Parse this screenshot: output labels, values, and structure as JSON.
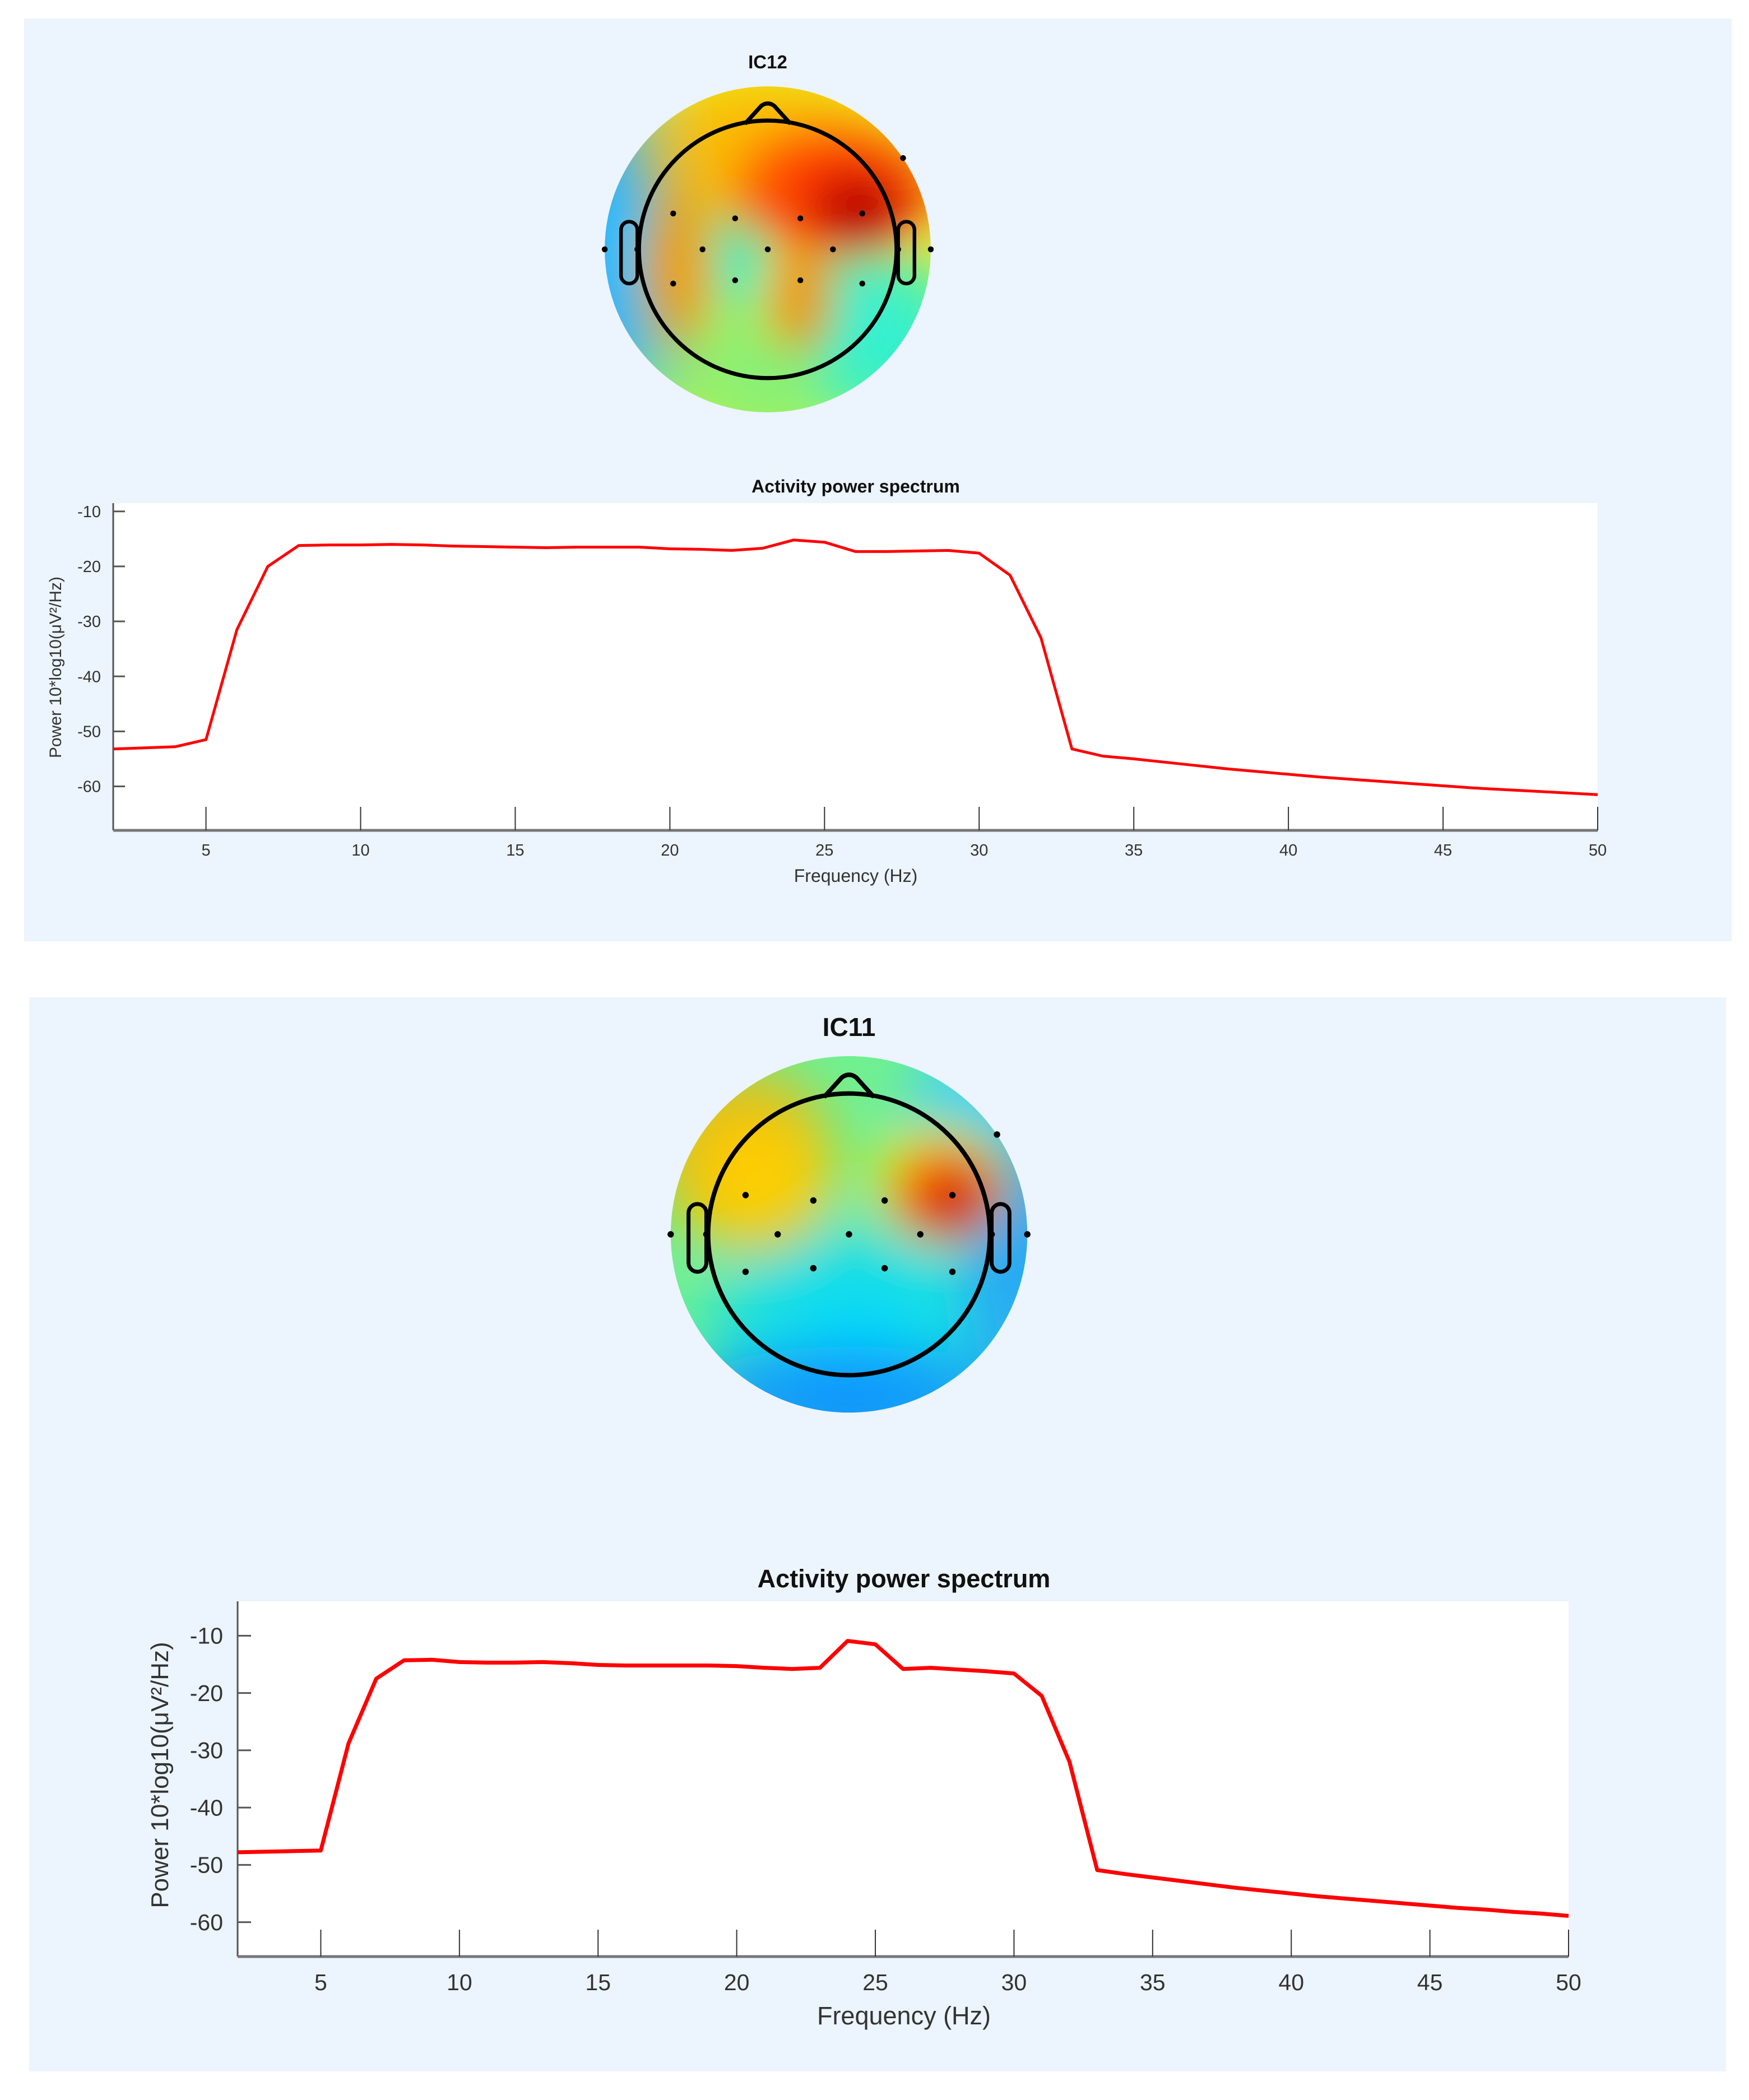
{
  "panels": [
    {
      "component_title": "IC12",
      "topoplot": {
        "colormap": "jet"
      }
    },
    {
      "component_title": "IC11",
      "topoplot": {
        "colormap": "jet"
      }
    }
  ],
  "chart_data": [
    {
      "type": "line",
      "title": "Activity power spectrum",
      "xlabel": "Frequency (Hz)",
      "ylabel": "Power 10*log10(μV²/Hz)",
      "xlim": [
        2,
        50
      ],
      "ylim": [
        -68,
        -8.5
      ],
      "xticks": [
        5,
        10,
        15,
        20,
        25,
        30,
        35,
        40,
        45,
        50
      ],
      "yticks": [
        -10,
        -20,
        -30,
        -40,
        -50,
        -60
      ],
      "line_color": "#ff0000",
      "grid": false,
      "x": [
        2,
        3,
        4,
        5,
        6,
        7,
        8,
        9,
        10,
        11,
        12,
        13,
        14,
        15,
        16,
        17,
        18,
        19,
        20,
        21,
        22,
        23,
        24,
        25,
        26,
        27,
        28,
        29,
        30,
        31,
        32,
        33,
        34,
        35,
        36,
        37,
        38,
        39,
        40,
        41,
        42,
        43,
        44,
        45,
        46,
        47,
        48,
        49,
        50
      ],
      "y": [
        -53.2,
        -53.0,
        -52.8,
        -51.5,
        -31.5,
        -20.0,
        -16.2,
        -16.1,
        -16.1,
        -16.0,
        -16.1,
        -16.3,
        -16.4,
        -16.5,
        -16.6,
        -16.5,
        -16.5,
        -16.5,
        -16.8,
        -16.9,
        -17.1,
        -16.7,
        -15.2,
        -15.6,
        -17.3,
        -17.3,
        -17.2,
        -17.1,
        -17.6,
        -21.6,
        -33.0,
        -53.2,
        -54.5,
        -55.0,
        -55.6,
        -56.2,
        -56.8,
        -57.3,
        -57.8,
        -58.3,
        -58.7,
        -59.1,
        -59.5,
        -59.9,
        -60.3,
        -60.6,
        -60.9,
        -61.2,
        -61.5
      ]
    },
    {
      "type": "line",
      "title": "Activity power spectrum",
      "xlabel": "Frequency (Hz)",
      "ylabel": "Power 10*log10(μV²/Hz)",
      "xlim": [
        2,
        50
      ],
      "ylim": [
        -66,
        -4
      ],
      "xticks": [
        5,
        10,
        15,
        20,
        25,
        30,
        35,
        40,
        45,
        50
      ],
      "yticks": [
        -10,
        -20,
        -30,
        -40,
        -50,
        -60
      ],
      "line_color": "#ff0000",
      "grid": false,
      "x": [
        2,
        3,
        4,
        5,
        6,
        7,
        8,
        9,
        10,
        11,
        12,
        13,
        14,
        15,
        16,
        17,
        18,
        19,
        20,
        21,
        22,
        23,
        24,
        25,
        26,
        27,
        28,
        29,
        30,
        31,
        32,
        33,
        34,
        35,
        36,
        37,
        38,
        39,
        40,
        41,
        42,
        43,
        44,
        45,
        46,
        47,
        48,
        49,
        50
      ],
      "y": [
        -47.8,
        -47.7,
        -47.6,
        -47.5,
        -28.8,
        -17.5,
        -14.3,
        -14.2,
        -14.6,
        -14.7,
        -14.7,
        -14.6,
        -14.8,
        -15.1,
        -15.2,
        -15.2,
        -15.2,
        -15.2,
        -15.3,
        -15.6,
        -15.8,
        -15.6,
        -10.9,
        -11.5,
        -15.8,
        -15.6,
        -15.9,
        -16.2,
        -16.6,
        -20.5,
        -32.0,
        -50.9,
        -51.6,
        -52.2,
        -52.8,
        -53.4,
        -54.0,
        -54.5,
        -55.0,
        -55.5,
        -55.9,
        -56.3,
        -56.7,
        -57.1,
        -57.5,
        -57.8,
        -58.2,
        -58.5,
        -58.9
      ]
    }
  ]
}
